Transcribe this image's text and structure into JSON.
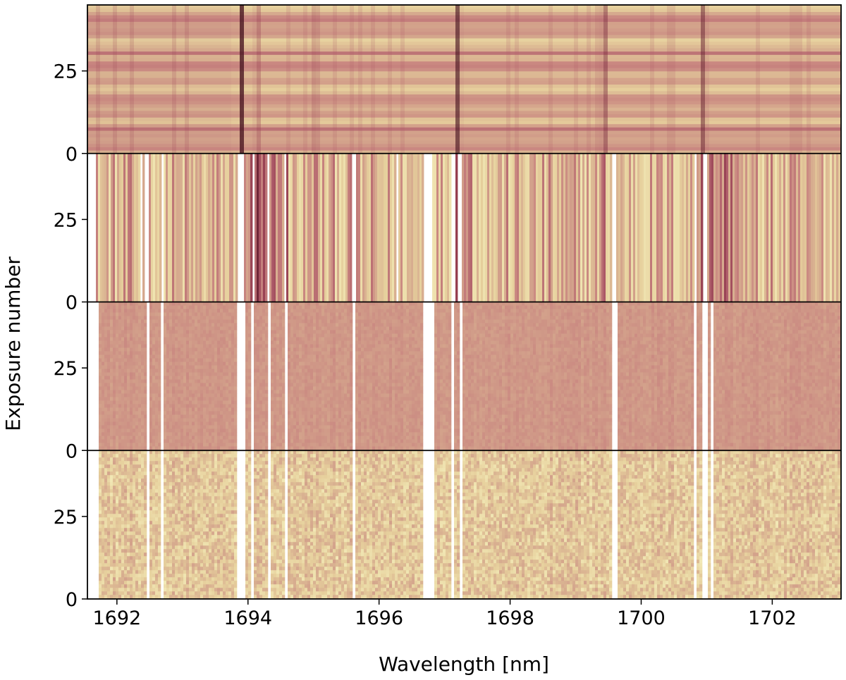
{
  "chart_data": {
    "type": "heatmap",
    "title": "",
    "xlabel": "Wavelength [nm]",
    "ylabel": "Exposure number",
    "xlim": [
      1691.55,
      1703.05
    ],
    "xticks": [
      1692,
      1694,
      1696,
      1698,
      1700,
      1702
    ],
    "xtick_labels": [
      "1692",
      "1694",
      "1696",
      "1698",
      "1700",
      "1702"
    ],
    "panel_count": 4,
    "panels": [
      {
        "name": "",
        "ylim": [
          0,
          45
        ],
        "yticks": [
          0,
          25
        ],
        "ytick_labels": [
          "0",
          "25"
        ],
        "style": "model-banded"
      },
      {
        "name": "",
        "ylim": [
          0,
          45
        ],
        "yticks": [
          0,
          25
        ],
        "ytick_labels": [
          "0",
          "25"
        ],
        "style": "data-stripes"
      },
      {
        "name": "",
        "ylim": [
          0,
          45
        ],
        "yticks": [
          0,
          25
        ],
        "ytick_labels": [
          "0",
          "25"
        ],
        "style": "residual-uniform"
      },
      {
        "name": "",
        "ylim": [
          0,
          45
        ],
        "yticks": [
          0,
          25
        ],
        "ytick_labels": [
          "0",
          "25"
        ],
        "style": "residual-noisy"
      }
    ],
    "masked_wavelength_ranges_nm": [
      [
        1691.55,
        1691.62
      ],
      [
        1692.33,
        1692.36
      ],
      [
        1692.42,
        1692.47
      ],
      [
        1692.66,
        1692.7
      ],
      [
        1693.83,
        1693.93
      ],
      [
        1694.04,
        1694.07
      ],
      [
        1694.28,
        1694.32
      ],
      [
        1694.55,
        1694.58
      ],
      [
        1695.58,
        1695.62
      ],
      [
        1696.25,
        1696.28
      ],
      [
        1696.66,
        1696.8
      ],
      [
        1697.08,
        1697.14
      ],
      [
        1697.19,
        1697.24
      ],
      [
        1699.55,
        1699.6
      ],
      [
        1700.79,
        1700.83
      ],
      [
        1700.92,
        1700.99
      ],
      [
        1701.04,
        1701.07
      ]
    ],
    "strong_absorption_lines_nm": [
      1693.87,
      1697.18,
      1700.93,
      1694.12,
      1695.0,
      1699.4
    ],
    "colormap": [
      "#f3ebb8",
      "#e6cf9c",
      "#d6aa8e",
      "#c98680",
      "#ad5b68",
      "#8a3146",
      "#4a1622"
    ],
    "grid": false,
    "legend": "none"
  }
}
